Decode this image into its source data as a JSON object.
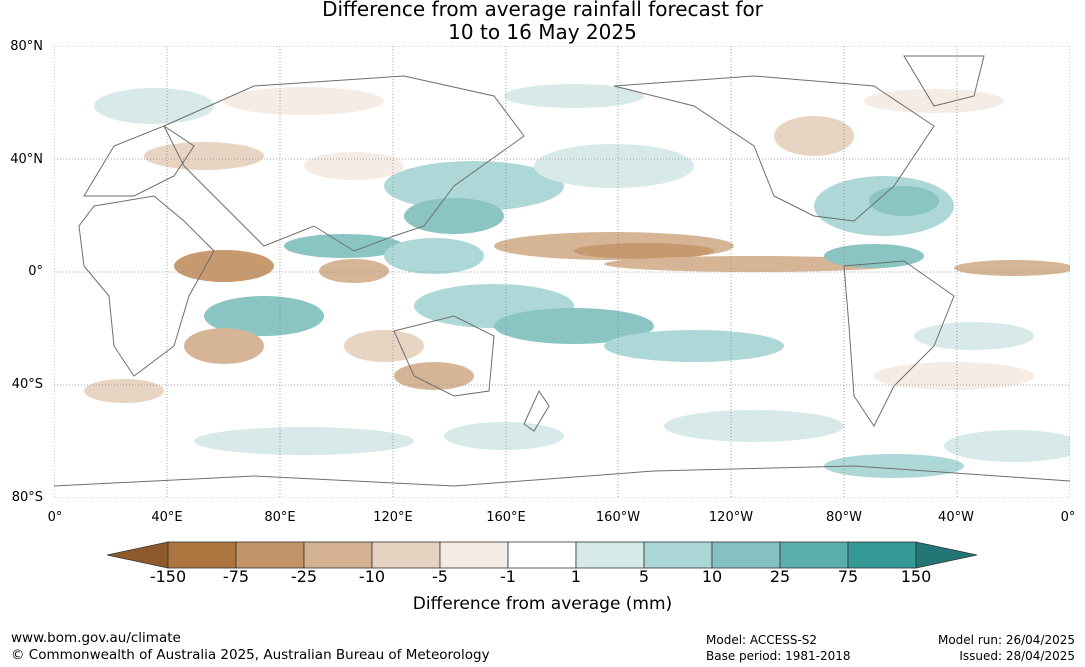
{
  "title_line1": "Difference from average rainfall forecast for",
  "title_line2": "10 to 16 May 2025",
  "lat_labels": [
    "80°N",
    "40°N",
    "0°",
    "40°S",
    "80°S"
  ],
  "lon_labels": [
    "0°",
    "40°E",
    "80°E",
    "120°E",
    "160°E",
    "160°W",
    "120°W",
    "80°W",
    "40°W",
    "0°"
  ],
  "colorbar": {
    "ticks": [
      "-150",
      "-75",
      "-25",
      "-10",
      "-5",
      "-1",
      "1",
      "5",
      "10",
      "25",
      "75",
      "150"
    ],
    "colors": [
      "#8f5a2b",
      "#ad763f",
      "#c39468",
      "#d4b291",
      "#e6d2c0",
      "#f4ebe4",
      "#ffffff",
      "#d5e9e8",
      "#aad6d5",
      "#84c1c0",
      "#5caeac",
      "#349a98",
      "#227776"
    ],
    "label": "Difference from average (mm)"
  },
  "footer": {
    "url": "www.bom.gov.au/climate",
    "copyright": "© Commonwealth of Australia 2025, Australian Bureau of Meteorology",
    "model": "Model: ACCESS-S2",
    "base_period": "Base period: 1981-2018",
    "model_run": "Model run: 26/04/2025",
    "issued": "Issued: 28/04/2025"
  }
}
